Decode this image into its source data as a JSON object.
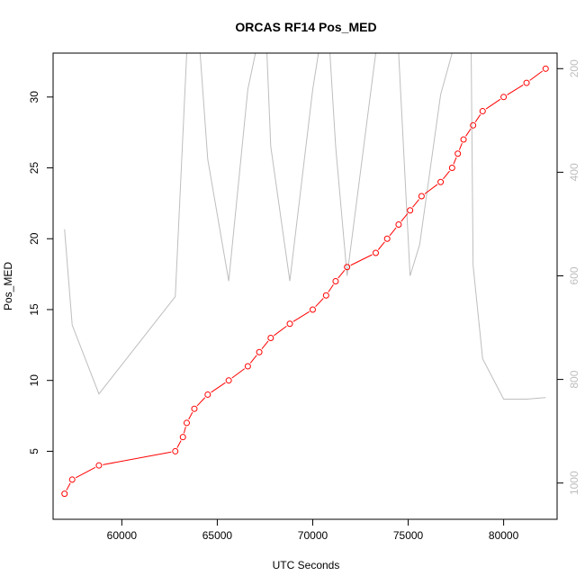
{
  "chart_data": {
    "type": "line",
    "title": "ORCAS RF14 Pos_MED",
    "xlabel": "UTC Seconds",
    "ylabel": "Pos_MED",
    "xlim": [
      56400,
      82800
    ],
    "ylim": [
      0.2,
      33.1
    ],
    "y2lim": [
      1070,
      170
    ],
    "y2_reversed": true,
    "x_ticks": [
      60000,
      65000,
      70000,
      75000,
      80000
    ],
    "y_ticks": [
      5,
      10,
      15,
      20,
      25,
      30
    ],
    "y2_ticks": [
      200,
      400,
      600,
      800,
      1000
    ],
    "series": [
      {
        "role": "primary",
        "color": "#ff0000",
        "marker": "open-circle",
        "points": [
          [
            57000,
            2
          ],
          [
            57400,
            3
          ],
          [
            58800,
            4
          ],
          [
            62800,
            5
          ],
          [
            63200,
            6
          ],
          [
            63400,
            7
          ],
          [
            63800,
            8
          ],
          [
            64500,
            9
          ],
          [
            65600,
            10
          ],
          [
            66600,
            11
          ],
          [
            67200,
            12
          ],
          [
            67800,
            13
          ],
          [
            68800,
            14
          ],
          [
            70000,
            15
          ],
          [
            70700,
            16
          ],
          [
            71200,
            17
          ],
          [
            71800,
            18
          ],
          [
            73300,
            19
          ],
          [
            73900,
            20
          ],
          [
            74500,
            21
          ],
          [
            75100,
            22
          ],
          [
            75700,
            23
          ],
          [
            76700,
            24
          ],
          [
            77300,
            25
          ],
          [
            77600,
            26
          ],
          [
            77900,
            27
          ],
          [
            78400,
            28
          ],
          [
            78900,
            29
          ],
          [
            80000,
            30
          ],
          [
            81200,
            31
          ],
          [
            82200,
            32
          ]
        ]
      },
      {
        "role": "secondary",
        "color": "#bebebe",
        "marker": "none",
        "points": [
          [
            57000,
            510
          ],
          [
            57400,
            695
          ],
          [
            58800,
            828
          ],
          [
            62800,
            640
          ],
          [
            63400,
            170
          ],
          [
            63500,
            170
          ],
          [
            64100,
            170
          ],
          [
            64500,
            375
          ],
          [
            65600,
            610
          ],
          [
            66600,
            240
          ],
          [
            67000,
            170
          ],
          [
            67200,
            170
          ],
          [
            67600,
            170
          ],
          [
            67800,
            350
          ],
          [
            68800,
            610
          ],
          [
            70000,
            240
          ],
          [
            70300,
            170
          ],
          [
            70500,
            170
          ],
          [
            70900,
            170
          ],
          [
            71200,
            350
          ],
          [
            71800,
            600
          ],
          [
            73300,
            170
          ],
          [
            73500,
            170
          ],
          [
            73700,
            170
          ],
          [
            73900,
            170
          ],
          [
            74500,
            170
          ],
          [
            75100,
            600
          ],
          [
            75600,
            540
          ],
          [
            76700,
            250
          ],
          [
            77300,
            170
          ],
          [
            77600,
            170
          ],
          [
            78300,
            170
          ],
          [
            78400,
            580
          ],
          [
            78900,
            760
          ],
          [
            80000,
            838
          ],
          [
            81200,
            838
          ],
          [
            82200,
            835
          ]
        ]
      }
    ]
  }
}
